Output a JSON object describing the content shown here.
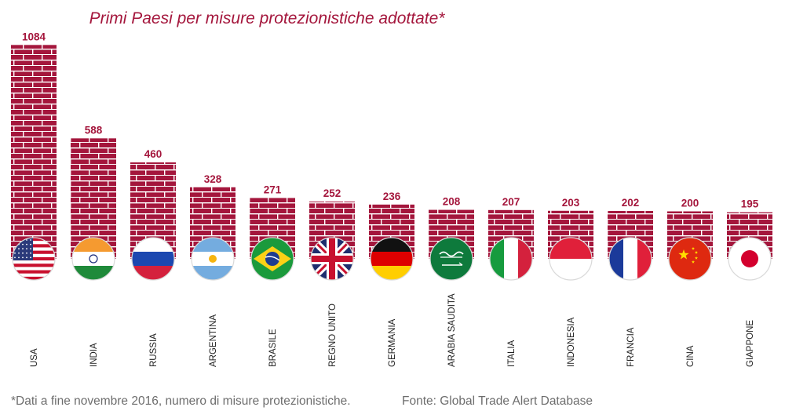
{
  "chart_data": {
    "type": "bar",
    "title": "Primi Paesi per misure protezionistiche adottate*",
    "categories": [
      "USA",
      "INDIA",
      "RUSSIA",
      "ARGENTINA",
      "BRASILE",
      "REGNO UNITO",
      "GERMANIA",
      "ARABIA SAUDITA",
      "ITALIA",
      "INDONESIA",
      "FRANCIA",
      "CINA",
      "GIAPPONE"
    ],
    "values": [
      1084,
      588,
      460,
      328,
      271,
      252,
      236,
      208,
      207,
      203,
      202,
      200,
      195
    ],
    "flags": [
      "us-flag-icon",
      "india-flag-icon",
      "russia-flag-icon",
      "argentina-flag-icon",
      "brazil-flag-icon",
      "uk-flag-icon",
      "germany-flag-icon",
      "saudi-arabia-flag-icon",
      "italy-flag-icon",
      "indonesia-flag-icon",
      "france-flag-icon",
      "china-flag-icon",
      "japan-flag-icon"
    ],
    "xlabel": "",
    "ylabel": "",
    "grid": false,
    "bar_style": "brick-wall",
    "colors": {
      "bar": "#a4163c",
      "mortar": "#ffffff",
      "label": "#a4163c",
      "category": "#222222"
    }
  },
  "footnote": "*Dati a fine novembre 2016, numero di misure protezionistiche.",
  "source": "Fonte: Global Trade Alert Database"
}
